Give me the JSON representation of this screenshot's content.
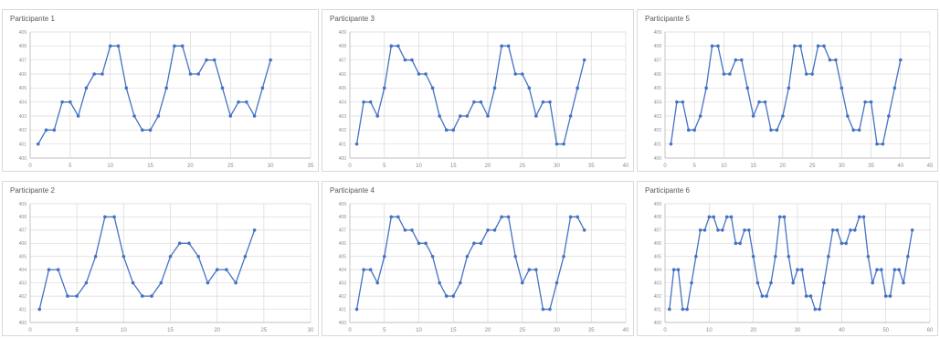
{
  "style": {
    "line_color": "#4472c4",
    "grid_color": "#d9d9d9",
    "axis_color": "#bfbfbf",
    "tick_label_color": "#8c8c8c",
    "title_color": "#595959",
    "border_color": "#d9d9d9"
  },
  "chart_data": [
    {
      "type": "line",
      "title": "Participante 1",
      "xlim": [
        0,
        35
      ],
      "xticks": [
        "0",
        "5",
        "10",
        "15",
        "20",
        "25",
        "30",
        "35"
      ],
      "xtick_values": [
        0,
        5,
        10,
        15,
        20,
        25,
        30,
        35
      ],
      "ylim": [
        400,
        409
      ],
      "yticks": [
        "400",
        "401",
        "402",
        "403",
        "404",
        "405",
        "406",
        "407",
        "408",
        "409"
      ],
      "ytick_values": [
        400,
        401,
        402,
        403,
        404,
        405,
        406,
        407,
        408,
        409
      ],
      "grid": true,
      "series": [
        {
          "x": [
            1,
            2,
            3,
            4,
            5,
            6,
            7,
            8,
            9,
            10,
            11,
            12,
            13,
            14,
            15,
            16,
            17,
            18,
            19,
            20,
            21,
            22,
            23,
            24,
            25,
            26,
            27,
            28,
            29,
            30
          ],
          "y": [
            401,
            402,
            402,
            404,
            404,
            403,
            405,
            406,
            406,
            408,
            408,
            405,
            403,
            402,
            402,
            403,
            405,
            408,
            408,
            406,
            406,
            407,
            407,
            405,
            403,
            404,
            404,
            403,
            405,
            407
          ]
        }
      ]
    },
    {
      "type": "line",
      "title": "Participante 3",
      "xlim": [
        0,
        40
      ],
      "xticks": [
        "0",
        "5",
        "10",
        "15",
        "20",
        "25",
        "30",
        "35",
        "40"
      ],
      "xtick_values": [
        0,
        5,
        10,
        15,
        20,
        25,
        30,
        35,
        40
      ],
      "ylim": [
        400,
        409
      ],
      "yticks": [
        "400",
        "401",
        "402",
        "403",
        "404",
        "405",
        "406",
        "407",
        "408",
        "409"
      ],
      "ytick_values": [
        400,
        401,
        402,
        403,
        404,
        405,
        406,
        407,
        408,
        409
      ],
      "grid": true,
      "series": [
        {
          "x": [
            1,
            2,
            3,
            4,
            5,
            6,
            7,
            8,
            9,
            10,
            11,
            12,
            13,
            14,
            15,
            16,
            17,
            18,
            19,
            20,
            21,
            22,
            23,
            24,
            25,
            26,
            27,
            28,
            29,
            30,
            31,
            32,
            33,
            34
          ],
          "y": [
            401,
            404,
            404,
            403,
            405,
            408,
            408,
            407,
            407,
            406,
            406,
            405,
            403,
            402,
            402,
            403,
            403,
            404,
            404,
            403,
            405,
            408,
            408,
            406,
            406,
            405,
            403,
            404,
            404,
            401,
            401,
            403,
            405,
            407
          ]
        }
      ]
    },
    {
      "type": "line",
      "title": "Participante 5",
      "xlim": [
        0,
        45
      ],
      "xticks": [
        "0",
        "5",
        "10",
        "15",
        "20",
        "25",
        "30",
        "35",
        "40",
        "45"
      ],
      "xtick_values": [
        0,
        5,
        10,
        15,
        20,
        25,
        30,
        35,
        40,
        45
      ],
      "ylim": [
        400,
        409
      ],
      "yticks": [
        "400",
        "401",
        "402",
        "403",
        "404",
        "405",
        "406",
        "407",
        "408",
        "409"
      ],
      "ytick_values": [
        400,
        401,
        402,
        403,
        404,
        405,
        406,
        407,
        408,
        409
      ],
      "grid": true,
      "series": [
        {
          "x": [
            1,
            2,
            3,
            4,
            5,
            6,
            7,
            8,
            9,
            10,
            11,
            12,
            13,
            14,
            15,
            16,
            17,
            18,
            19,
            20,
            21,
            22,
            23,
            24,
            25,
            26,
            27,
            28,
            29,
            30,
            31,
            32,
            33,
            34,
            35,
            36,
            37,
            38,
            39,
            40
          ],
          "y": [
            401,
            404,
            404,
            402,
            402,
            403,
            405,
            408,
            408,
            406,
            406,
            407,
            407,
            405,
            403,
            404,
            404,
            402,
            402,
            403,
            405,
            408,
            408,
            406,
            406,
            408,
            408,
            407,
            407,
            405,
            403,
            402,
            402,
            404,
            404,
            401,
            401,
            403,
            405,
            407
          ]
        }
      ]
    },
    {
      "type": "line",
      "title": "Participante 2",
      "xlim": [
        0,
        30
      ],
      "xticks": [
        "0",
        "5",
        "10",
        "15",
        "20",
        "25",
        "30"
      ],
      "xtick_values": [
        0,
        5,
        10,
        15,
        20,
        25,
        30
      ],
      "ylim": [
        400,
        409
      ],
      "yticks": [
        "400",
        "401",
        "402",
        "403",
        "404",
        "405",
        "406",
        "407",
        "408",
        "409"
      ],
      "ytick_values": [
        400,
        401,
        402,
        403,
        404,
        405,
        406,
        407,
        408,
        409
      ],
      "grid": true,
      "series": [
        {
          "x": [
            1,
            2,
            3,
            4,
            5,
            6,
            7,
            8,
            9,
            10,
            11,
            12,
            13,
            14,
            15,
            16,
            17,
            18,
            19,
            20,
            21,
            22,
            23,
            24
          ],
          "y": [
            401,
            404,
            404,
            402,
            402,
            403,
            405,
            408,
            408,
            405,
            403,
            402,
            402,
            403,
            405,
            406,
            406,
            405,
            403,
            404,
            404,
            403,
            405,
            407
          ]
        }
      ]
    },
    {
      "type": "line",
      "title": "Participante 4",
      "xlim": [
        0,
        40
      ],
      "xticks": [
        "0",
        "5",
        "10",
        "15",
        "20",
        "25",
        "30",
        "35",
        "40"
      ],
      "xtick_values": [
        0,
        5,
        10,
        15,
        20,
        25,
        30,
        35,
        40
      ],
      "ylim": [
        400,
        409
      ],
      "yticks": [
        "400",
        "401",
        "402",
        "403",
        "404",
        "405",
        "406",
        "407",
        "408",
        "409"
      ],
      "ytick_values": [
        400,
        401,
        402,
        403,
        404,
        405,
        406,
        407,
        408,
        409
      ],
      "grid": true,
      "series": [
        {
          "x": [
            1,
            2,
            3,
            4,
            5,
            6,
            7,
            8,
            9,
            10,
            11,
            12,
            13,
            14,
            15,
            16,
            17,
            18,
            19,
            20,
            21,
            22,
            23,
            24,
            25,
            26,
            27,
            28,
            29,
            30,
            31,
            32,
            33,
            34
          ],
          "y": [
            401,
            404,
            404,
            403,
            405,
            408,
            408,
            407,
            407,
            406,
            406,
            405,
            403,
            402,
            402,
            403,
            405,
            406,
            406,
            407,
            407,
            408,
            408,
            405,
            403,
            404,
            404,
            401,
            401,
            403,
            405,
            408,
            408,
            407
          ]
        }
      ]
    },
    {
      "type": "line",
      "title": "Participante 6",
      "xlim": [
        0,
        60
      ],
      "xticks": [
        "0",
        "10",
        "20",
        "30",
        "40",
        "50",
        "60"
      ],
      "xtick_values": [
        0,
        10,
        20,
        30,
        40,
        50,
        60
      ],
      "ylim": [
        400,
        409
      ],
      "yticks": [
        "400",
        "401",
        "402",
        "403",
        "404",
        "405",
        "406",
        "407",
        "408",
        "409"
      ],
      "ytick_values": [
        400,
        401,
        402,
        403,
        404,
        405,
        406,
        407,
        408,
        409
      ],
      "grid": true,
      "series": [
        {
          "x": [
            1,
            2,
            3,
            4,
            5,
            6,
            7,
            8,
            9,
            10,
            11,
            12,
            13,
            14,
            15,
            16,
            17,
            18,
            19,
            20,
            21,
            22,
            23,
            24,
            25,
            26,
            27,
            28,
            29,
            30,
            31,
            32,
            33,
            34,
            35,
            36,
            37,
            38,
            39,
            40,
            41,
            42,
            43,
            44,
            45,
            46,
            47,
            48,
            49,
            50,
            51,
            52,
            53,
            54,
            55,
            56
          ],
          "y": [
            401,
            404,
            404,
            401,
            401,
            403,
            405,
            407,
            407,
            408,
            408,
            407,
            407,
            408,
            408,
            406,
            406,
            407,
            407,
            405,
            403,
            402,
            402,
            403,
            405,
            408,
            408,
            405,
            403,
            404,
            404,
            402,
            402,
            401,
            401,
            403,
            405,
            407,
            407,
            406,
            406,
            407,
            407,
            408,
            408,
            405,
            403,
            404,
            404,
            402,
            402,
            404,
            404,
            403,
            405,
            407
          ]
        }
      ]
    }
  ]
}
